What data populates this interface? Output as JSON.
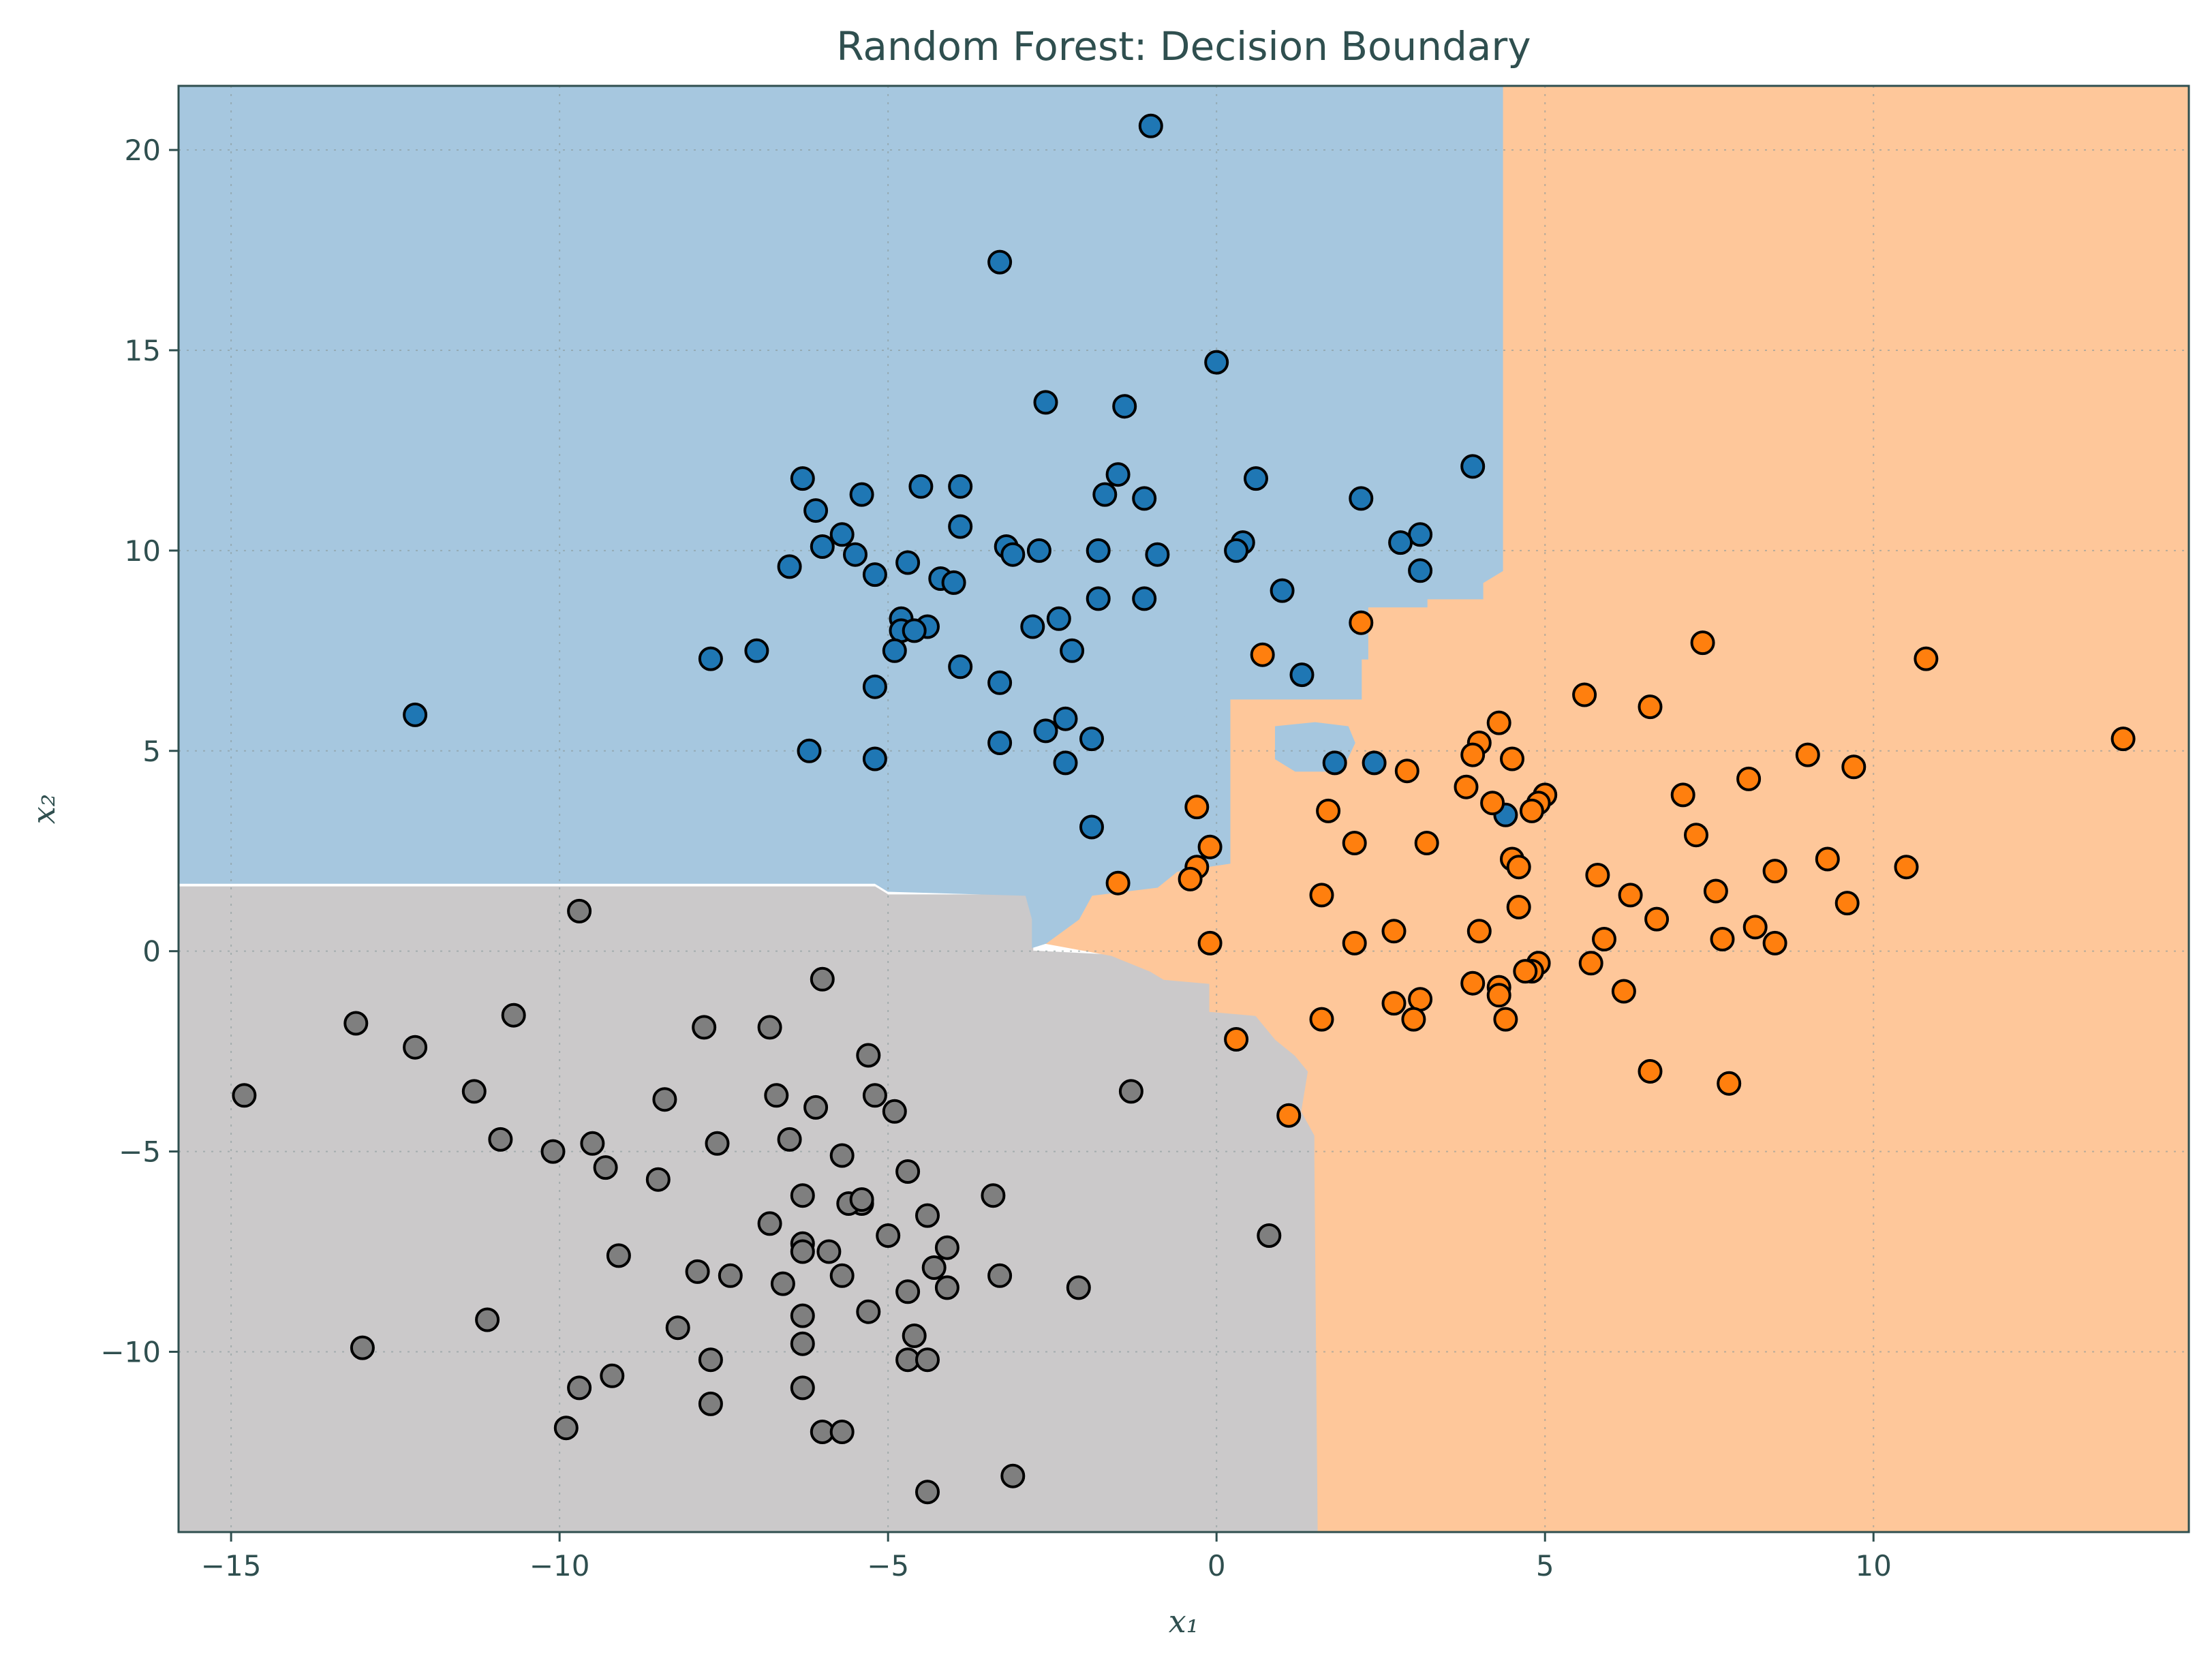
{
  "chart_data": {
    "type": "scatter",
    "title": "Random Forest: Decision Boundary",
    "xlabel": "x₁",
    "ylabel": "x₂",
    "xlim": [
      -15.8,
      14.8
    ],
    "ylim": [
      -14.5,
      21.6
    ],
    "xticks": [
      -15,
      -10,
      -5,
      0,
      5,
      10
    ],
    "yticks": [
      -10,
      -5,
      0,
      5,
      10,
      15,
      20
    ],
    "xtick_labels": [
      "−15",
      "−10",
      "−5",
      "0",
      "5",
      "10"
    ],
    "ytick_labels": [
      "−10",
      "−5",
      "0",
      "5",
      "10",
      "15",
      "20"
    ],
    "grid": true,
    "colors": {
      "region_blue": "#a6c7df",
      "region_orange": "#fec79a",
      "region_gray": "#cbc9ca",
      "point_blue": "#1f77b4",
      "point_orange": "#ff7f0e",
      "point_gray": "#7f7f7f",
      "text": "#2f4f4f",
      "frame": "#2f4f4f"
    },
    "regions": {
      "blue": [
        [
          -15.8,
          21.6
        ],
        [
          4.35,
          21.6
        ],
        [
          4.35,
          9.5
        ],
        [
          4.05,
          9.2
        ],
        [
          4.05,
          8.8
        ],
        [
          3.2,
          8.8
        ],
        [
          3.2,
          8.6
        ],
        [
          2.3,
          8.6
        ],
        [
          2.3,
          7.3
        ],
        [
          2.2,
          7.3
        ],
        [
          2.2,
          6.3
        ],
        [
          0.2,
          6.3
        ],
        [
          0.2,
          2.2
        ],
        [
          -0.6,
          2.0
        ],
        [
          -0.9,
          1.6
        ],
        [
          -1.9,
          1.4
        ],
        [
          -2.1,
          0.8
        ],
        [
          -2.6,
          0.2
        ],
        [
          -2.8,
          0.1
        ],
        [
          -2.8,
          0.8
        ],
        [
          -2.9,
          1.4
        ],
        [
          -5.0,
          1.5
        ],
        [
          -5.2,
          1.7
        ],
        [
          -15.8,
          1.7
        ]
      ],
      "gray": [
        [
          -15.8,
          1.6
        ],
        [
          -5.2,
          1.6
        ],
        [
          -5.0,
          1.4
        ],
        [
          -2.9,
          1.4
        ],
        [
          -2.8,
          0.8
        ],
        [
          -2.8,
          0.0
        ],
        [
          -1.6,
          -0.1
        ],
        [
          -1.0,
          -0.5
        ],
        [
          -0.8,
          -0.7
        ],
        [
          -0.1,
          -0.8
        ],
        [
          -0.1,
          -1.5
        ],
        [
          0.6,
          -1.6
        ],
        [
          0.9,
          -2.2
        ],
        [
          1.2,
          -2.6
        ],
        [
          1.4,
          -3.0
        ],
        [
          1.3,
          -4.0
        ],
        [
          1.5,
          -4.6
        ],
        [
          1.5,
          -5.2
        ],
        [
          1.55,
          -14.5
        ],
        [
          -15.8,
          -14.5
        ]
      ],
      "orange": [
        [
          4.35,
          21.6
        ],
        [
          14.8,
          21.6
        ],
        [
          14.8,
          -14.5
        ],
        [
          1.55,
          -14.5
        ],
        [
          1.5,
          -5.2
        ],
        [
          1.5,
          -4.6
        ],
        [
          1.3,
          -4.0
        ],
        [
          1.4,
          -3.0
        ],
        [
          1.2,
          -2.6
        ],
        [
          0.9,
          -2.2
        ],
        [
          0.6,
          -1.6
        ],
        [
          -0.1,
          -1.5
        ],
        [
          -0.1,
          -0.8
        ],
        [
          -0.8,
          -0.7
        ],
        [
          -1.0,
          -0.5
        ],
        [
          -1.6,
          -0.1
        ],
        [
          -2.6,
          0.2
        ],
        [
          -2.1,
          0.8
        ],
        [
          -1.9,
          1.4
        ],
        [
          -0.9,
          1.6
        ],
        [
          -0.6,
          2.0
        ],
        [
          0.2,
          2.2
        ],
        [
          0.2,
          6.3
        ],
        [
          2.2,
          6.3
        ],
        [
          2.2,
          7.3
        ],
        [
          2.3,
          7.3
        ],
        [
          2.3,
          8.6
        ],
        [
          3.2,
          8.6
        ],
        [
          3.2,
          8.8
        ],
        [
          4.05,
          8.8
        ],
        [
          4.05,
          9.2
        ],
        [
          4.35,
          9.5
        ]
      ]
    },
    "islands": [
      {
        "class": "blue",
        "points": [
          [
            0.9,
            5.6
          ],
          [
            1.5,
            5.7
          ],
          [
            2.0,
            5.6
          ],
          [
            2.1,
            5.2
          ],
          [
            1.9,
            4.5
          ],
          [
            1.2,
            4.5
          ],
          [
            0.9,
            4.8
          ]
        ]
      },
      {
        "class": "blue",
        "points": [
          [
            -0.6,
            6.0
          ],
          [
            -0.3,
            6.1
          ],
          [
            -0.3,
            5.9
          ],
          [
            -0.6,
            5.8
          ]
        ]
      }
    ],
    "series": [
      {
        "class": "blue",
        "points": [
          [
            -1.0,
            20.6
          ],
          [
            -3.3,
            17.2
          ],
          [
            0.0,
            14.7
          ],
          [
            -2.6,
            13.7
          ],
          [
            -1.4,
            13.6
          ],
          [
            3.9,
            12.1
          ],
          [
            -1.5,
            11.9
          ],
          [
            0.6,
            11.8
          ],
          [
            -6.3,
            11.8
          ],
          [
            -4.5,
            11.6
          ],
          [
            -3.9,
            11.6
          ],
          [
            -5.4,
            11.4
          ],
          [
            -1.7,
            11.4
          ],
          [
            -1.1,
            11.3
          ],
          [
            2.2,
            11.3
          ],
          [
            -6.1,
            11.0
          ],
          [
            -3.9,
            10.6
          ],
          [
            -5.7,
            10.4
          ],
          [
            3.1,
            10.4
          ],
          [
            0.4,
            10.2
          ],
          [
            2.8,
            10.2
          ],
          [
            -6.0,
            10.1
          ],
          [
            -3.2,
            10.1
          ],
          [
            -2.7,
            10.0
          ],
          [
            -1.8,
            10.0
          ],
          [
            0.3,
            10.0
          ],
          [
            -5.5,
            9.9
          ],
          [
            -3.1,
            9.9
          ],
          [
            -0.9,
            9.9
          ],
          [
            -4.7,
            9.7
          ],
          [
            -6.5,
            9.6
          ],
          [
            3.1,
            9.5
          ],
          [
            -5.2,
            9.4
          ],
          [
            -4.2,
            9.3
          ],
          [
            -4.0,
            9.2
          ],
          [
            1.0,
            9.0
          ],
          [
            -1.8,
            8.8
          ],
          [
            -1.1,
            8.8
          ],
          [
            -4.8,
            8.3
          ],
          [
            -2.4,
            8.3
          ],
          [
            -4.4,
            8.1
          ],
          [
            -2.8,
            8.1
          ],
          [
            -4.8,
            8.0
          ],
          [
            -4.6,
            8.0
          ],
          [
            -2.2,
            7.5
          ],
          [
            -4.9,
            7.5
          ],
          [
            -7.0,
            7.5
          ],
          [
            -7.7,
            7.3
          ],
          [
            -3.9,
            7.1
          ],
          [
            1.3,
            6.9
          ],
          [
            -3.3,
            6.7
          ],
          [
            -5.2,
            6.6
          ],
          [
            -12.2,
            5.9
          ],
          [
            -2.3,
            5.8
          ],
          [
            -2.6,
            5.5
          ],
          [
            -1.9,
            5.3
          ],
          [
            -3.3,
            5.2
          ],
          [
            -6.2,
            5.0
          ],
          [
            -5.2,
            4.8
          ],
          [
            -2.3,
            4.7
          ],
          [
            1.8,
            4.7
          ],
          [
            2.4,
            4.7
          ],
          [
            4.4,
            3.4
          ],
          [
            -1.9,
            3.1
          ]
        ]
      },
      {
        "class": "orange",
        "points": [
          [
            13.8,
            5.3
          ],
          [
            10.8,
            7.3
          ],
          [
            7.4,
            7.7
          ],
          [
            2.2,
            8.2
          ],
          [
            0.7,
            7.4
          ],
          [
            5.6,
            6.4
          ],
          [
            6.6,
            6.1
          ],
          [
            4.3,
            5.7
          ],
          [
            4.0,
            5.2
          ],
          [
            3.9,
            4.9
          ],
          [
            4.5,
            4.8
          ],
          [
            9.0,
            4.9
          ],
          [
            9.7,
            4.6
          ],
          [
            2.9,
            4.5
          ],
          [
            8.1,
            4.3
          ],
          [
            3.8,
            4.1
          ],
          [
            5.0,
            3.9
          ],
          [
            7.1,
            3.9
          ],
          [
            4.2,
            3.7
          ],
          [
            4.9,
            3.7
          ],
          [
            -0.3,
            3.6
          ],
          [
            1.7,
            3.5
          ],
          [
            4.8,
            3.5
          ],
          [
            7.3,
            2.9
          ],
          [
            2.1,
            2.7
          ],
          [
            3.2,
            2.7
          ],
          [
            -0.1,
            2.6
          ],
          [
            4.5,
            2.3
          ],
          [
            9.3,
            2.3
          ],
          [
            4.6,
            2.1
          ],
          [
            -0.3,
            2.1
          ],
          [
            10.5,
            2.1
          ],
          [
            8.5,
            2.0
          ],
          [
            5.8,
            1.9
          ],
          [
            -0.4,
            1.8
          ],
          [
            -1.5,
            1.7
          ],
          [
            7.6,
            1.5
          ],
          [
            1.6,
            1.4
          ],
          [
            6.3,
            1.4
          ],
          [
            9.6,
            1.2
          ],
          [
            4.6,
            1.1
          ],
          [
            6.7,
            0.8
          ],
          [
            8.2,
            0.6
          ],
          [
            2.7,
            0.5
          ],
          [
            4.0,
            0.5
          ],
          [
            5.9,
            0.3
          ],
          [
            7.7,
            0.3
          ],
          [
            8.5,
            0.2
          ],
          [
            -0.1,
            0.2
          ],
          [
            2.1,
            0.2
          ],
          [
            5.7,
            -0.3
          ],
          [
            4.9,
            -0.3
          ],
          [
            4.8,
            -0.5
          ],
          [
            4.7,
            -0.5
          ],
          [
            3.9,
            -0.8
          ],
          [
            4.3,
            -0.9
          ],
          [
            6.2,
            -1.0
          ],
          [
            4.3,
            -1.1
          ],
          [
            3.1,
            -1.2
          ],
          [
            2.7,
            -1.3
          ],
          [
            1.6,
            -1.7
          ],
          [
            3.0,
            -1.7
          ],
          [
            4.4,
            -1.7
          ],
          [
            0.3,
            -2.2
          ],
          [
            6.6,
            -3.0
          ],
          [
            7.8,
            -3.3
          ],
          [
            1.1,
            -4.1
          ]
        ]
      },
      {
        "class": "gray",
        "points": [
          [
            -9.7,
            1.0
          ],
          [
            -6.0,
            -0.7
          ],
          [
            -10.7,
            -1.6
          ],
          [
            -13.1,
            -1.8
          ],
          [
            -7.8,
            -1.9
          ],
          [
            -6.8,
            -1.9
          ],
          [
            -12.2,
            -2.4
          ],
          [
            -5.3,
            -2.6
          ],
          [
            -14.8,
            -3.6
          ],
          [
            -11.3,
            -3.5
          ],
          [
            -1.3,
            -3.5
          ],
          [
            -5.2,
            -3.6
          ],
          [
            -8.4,
            -3.7
          ],
          [
            -6.7,
            -3.6
          ],
          [
            -6.1,
            -3.9
          ],
          [
            -4.9,
            -4.0
          ],
          [
            -10.9,
            -4.7
          ],
          [
            -9.5,
            -4.8
          ],
          [
            -7.6,
            -4.8
          ],
          [
            -6.5,
            -4.7
          ],
          [
            -10.1,
            -5.0
          ],
          [
            -5.7,
            -5.1
          ],
          [
            -9.3,
            -5.4
          ],
          [
            -4.7,
            -5.5
          ],
          [
            -8.5,
            -5.7
          ],
          [
            -3.4,
            -6.1
          ],
          [
            -6.3,
            -6.1
          ],
          [
            -5.4,
            -6.3
          ],
          [
            -5.6,
            -6.3
          ],
          [
            -5.4,
            -6.2
          ],
          [
            -4.4,
            -6.6
          ],
          [
            -6.8,
            -6.8
          ],
          [
            0.8,
            -7.1
          ],
          [
            -5.0,
            -7.1
          ],
          [
            -6.3,
            -7.3
          ],
          [
            -4.1,
            -7.4
          ],
          [
            -6.3,
            -7.5
          ],
          [
            -5.9,
            -7.5
          ],
          [
            -9.1,
            -7.6
          ],
          [
            -4.3,
            -7.9
          ],
          [
            -7.9,
            -8.0
          ],
          [
            -3.3,
            -8.1
          ],
          [
            -7.4,
            -8.1
          ],
          [
            -5.7,
            -8.1
          ],
          [
            -6.6,
            -8.3
          ],
          [
            -4.1,
            -8.4
          ],
          [
            -2.1,
            -8.4
          ],
          [
            -4.7,
            -8.5
          ],
          [
            -5.3,
            -9.0
          ],
          [
            -6.3,
            -9.1
          ],
          [
            -11.1,
            -9.2
          ],
          [
            -8.2,
            -9.4
          ],
          [
            -4.6,
            -9.6
          ],
          [
            -6.3,
            -9.8
          ],
          [
            -13.0,
            -9.9
          ],
          [
            -7.7,
            -10.2
          ],
          [
            -4.7,
            -10.2
          ],
          [
            -4.4,
            -10.2
          ],
          [
            -9.2,
            -10.6
          ],
          [
            -9.7,
            -10.9
          ],
          [
            -6.3,
            -10.9
          ],
          [
            -7.7,
            -11.3
          ],
          [
            -9.9,
            -11.9
          ],
          [
            -6.0,
            -12.0
          ],
          [
            -5.7,
            -12.0
          ],
          [
            -3.1,
            -13.1
          ],
          [
            -4.4,
            -13.5
          ]
        ]
      }
    ]
  }
}
